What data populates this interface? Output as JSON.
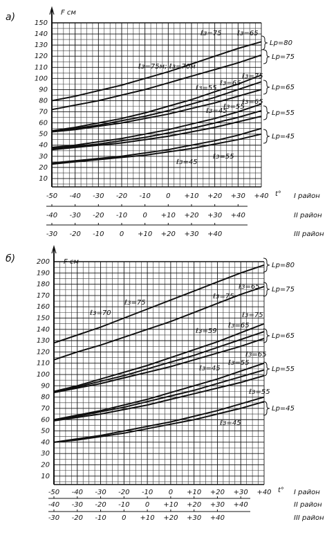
{
  "chart_data": [
    {
      "type": "line",
      "label": "а)",
      "y_label": "F см",
      "x_label": "t°",
      "grid": true,
      "ylim": [
        2.5,
        150
      ],
      "yticks": [
        10,
        20,
        30,
        40,
        50,
        60,
        70,
        80,
        90,
        100,
        110,
        120,
        130,
        140,
        150
      ],
      "x": [
        -50,
        -40,
        -30,
        -20,
        -10,
        0,
        10,
        20,
        30,
        40
      ],
      "x_axes": [
        {
          "name": "I район",
          "xlim": [
            -50,
            40
          ],
          "xticks": [
            -50,
            -40,
            -30,
            -20,
            -10,
            0,
            {
              "value": 10,
              "label": "+10"
            },
            {
              "value": 20,
              "label": "+20"
            },
            {
              "value": 30,
              "label": "+30"
            },
            {
              "value": 40,
              "label": "+40"
            }
          ]
        },
        {
          "name": "II район",
          "xlim": [
            -40,
            50
          ],
          "xticks": [
            -40,
            -30,
            -20,
            -10,
            0,
            {
              "value": 10,
              "label": "+10"
            },
            {
              "value": 20,
              "label": "+20"
            },
            {
              "value": 30,
              "label": "+30"
            },
            {
              "value": 40,
              "label": "+40"
            }
          ]
        },
        {
          "name": "III район",
          "xlim": [
            -30,
            60
          ],
          "xticks": [
            -30,
            -20,
            -10,
            0,
            {
              "value": 10,
              "label": "+10"
            },
            {
              "value": 20,
              "label": "+20"
            },
            {
              "value": 30,
              "label": "+30"
            },
            {
              "value": 40,
              "label": "+40"
            }
          ]
        }
      ],
      "series": [
        {
          "color": "#111111",
          "values": [
            80,
            84,
            89,
            94,
            100,
            106,
            113,
            120,
            127,
            133
          ]
        },
        {
          "color": "#111111",
          "values": [
            72,
            76,
            80,
            85,
            90,
            96,
            102,
            108,
            114,
            121
          ]
        },
        {
          "color": "#111111",
          "values": [
            53,
            56,
            60,
            64,
            69,
            75,
            81,
            88,
            95,
            103
          ]
        },
        {
          "color": "#111111",
          "values": [
            53,
            55,
            58,
            62,
            66,
            71,
            77,
            83,
            90,
            97
          ]
        },
        {
          "color": "#111111",
          "values": [
            52,
            54,
            57,
            60,
            64,
            68,
            73,
            78,
            84,
            90
          ]
        },
        {
          "color": "#111111",
          "values": [
            38,
            40,
            43,
            46,
            50,
            54,
            59,
            64,
            70,
            77
          ]
        },
        {
          "color": "#111111",
          "values": [
            37,
            39,
            41,
            44,
            47,
            51,
            55,
            60,
            65,
            71
          ]
        },
        {
          "color": "#111111",
          "values": [
            36,
            38,
            40,
            42,
            45,
            48,
            52,
            56,
            61,
            66
          ]
        },
        {
          "color": "#111111",
          "values": [
            24,
            26,
            28,
            30,
            33,
            36,
            40,
            44,
            49,
            55
          ]
        },
        {
          "color": "#111111",
          "values": [
            23,
            25,
            27,
            29,
            31,
            34,
            37,
            41,
            45,
            50
          ]
        }
      ],
      "annotations": [
        "ℓз=75",
        "ℓз=65",
        "Lр=80",
        "Lр=75",
        "ℓз=75м; ℓз=70м",
        "ℓз=55",
        "ℓз=65",
        "ℓз=75",
        "Lр=65",
        "ℓз=45",
        "ℓз=55",
        "ℓз=65",
        "Lр=55",
        "Lр=45",
        "ℓз=45",
        "ℓз=55"
      ]
    },
    {
      "type": "line",
      "label": "б)",
      "y_label": "F см",
      "x_label": "t°",
      "grid": true,
      "ylim": [
        2.5,
        200
      ],
      "yticks": [
        10,
        20,
        30,
        40,
        50,
        60,
        70,
        80,
        90,
        100,
        110,
        120,
        130,
        140,
        150,
        160,
        170,
        180,
        190,
        200
      ],
      "x": [
        -50,
        -40,
        -30,
        -20,
        -10,
        0,
        10,
        20,
        30,
        40
      ],
      "x_axes": [
        {
          "name": "I район",
          "xlim": [
            -50,
            40
          ],
          "xticks": [
            -50,
            -40,
            -30,
            -20,
            -10,
            0,
            {
              "value": 10,
              "label": "+10"
            },
            {
              "value": 20,
              "label": "+20"
            },
            {
              "value": 30,
              "label": "+30"
            },
            {
              "value": 40,
              "label": "+40"
            }
          ]
        },
        {
          "name": "II район",
          "xlim": [
            -40,
            50
          ],
          "xticks": [
            -40,
            -30,
            -20,
            -10,
            0,
            {
              "value": 10,
              "label": "+10"
            },
            {
              "value": 20,
              "label": "+20"
            },
            {
              "value": 30,
              "label": "+30"
            },
            {
              "value": 40,
              "label": "+40"
            }
          ]
        },
        {
          "name": "III район",
          "xlim": [
            -30,
            60
          ],
          "xticks": [
            -30,
            -20,
            -10,
            0,
            {
              "value": 10,
              "label": "+10"
            },
            {
              "value": 20,
              "label": "+20"
            },
            {
              "value": 30,
              "label": "+30"
            },
            {
              "value": 40,
              "label": "+40"
            }
          ]
        }
      ],
      "series": [
        {
          "color": "#111111",
          "values": [
            128,
            135,
            142,
            150,
            158,
            166,
            174,
            182,
            190,
            197
          ]
        },
        {
          "color": "#111111",
          "values": [
            113,
            120,
            126,
            133,
            140,
            147,
            155,
            163,
            171,
            178
          ]
        },
        {
          "color": "#111111",
          "values": [
            85,
            90,
            96,
            102,
            108,
            115,
            122,
            129,
            137,
            145
          ]
        },
        {
          "color": "#111111",
          "values": [
            85,
            89,
            94,
            99,
            105,
            111,
            117,
            124,
            131,
            138
          ]
        },
        {
          "color": "#111111",
          "values": [
            84,
            88,
            92,
            97,
            102,
            107,
            113,
            119,
            125,
            132
          ]
        },
        {
          "color": "#111111",
          "values": [
            60,
            64,
            68,
            73,
            78,
            84,
            90,
            96,
            103,
            110
          ]
        },
        {
          "color": "#111111",
          "values": [
            60,
            63,
            67,
            71,
            76,
            81,
            86,
            92,
            98,
            104
          ]
        },
        {
          "color": "#111111",
          "values": [
            59,
            62,
            65,
            69,
            73,
            78,
            83,
            88,
            93,
            99
          ]
        },
        {
          "color": "#111111",
          "values": [
            40,
            43,
            46,
            50,
            54,
            58,
            63,
            68,
            74,
            80
          ]
        },
        {
          "color": "#111111",
          "values": [
            40,
            42,
            45,
            48,
            52,
            56,
            60,
            65,
            70,
            76
          ]
        }
      ],
      "annotations": [
        "ℓз=70",
        "ℓз=75",
        "ℓз=75",
        "ℓз=65",
        "Lр=80",
        "Lр=75",
        "ℓз=59",
        "ℓз=65",
        "ℓз=75",
        "Lр=65",
        "ℓз=45",
        "ℓз=55",
        "ℓз=65",
        "Lр=55",
        "ℓз=55",
        "ℓз=45",
        "Lр=45"
      ]
    }
  ]
}
